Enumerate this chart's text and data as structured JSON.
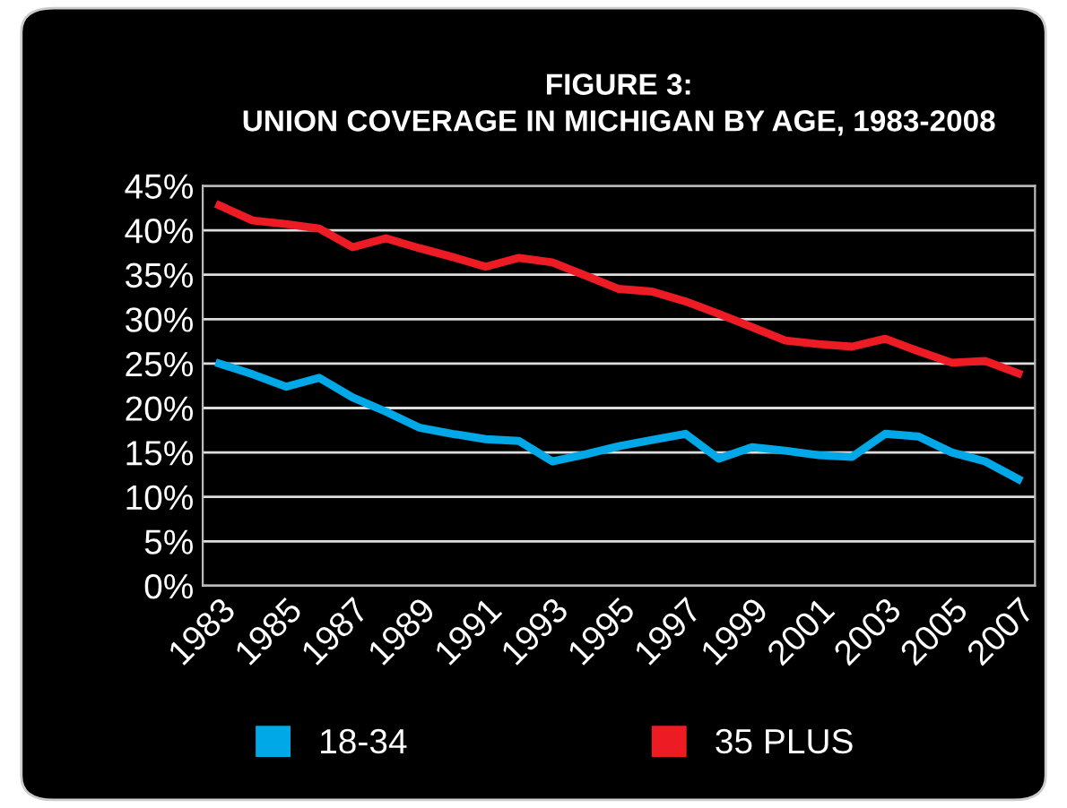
{
  "chart_data": {
    "type": "line",
    "title": "FIGURE 3:\nUNION COVERAGE IN MICHIGAN BY AGE, 1983-2008",
    "x": [
      1983,
      1984,
      1985,
      1986,
      1987,
      1988,
      1989,
      1990,
      1991,
      1992,
      1993,
      1994,
      1995,
      1996,
      1997,
      1998,
      1999,
      2000,
      2001,
      2002,
      2003,
      2004,
      2005,
      2006,
      2007
    ],
    "series": [
      {
        "name": "18-34",
        "color": "#00a8e8",
        "values": [
          25.0,
          23.8,
          22.4,
          23.4,
          21.2,
          19.6,
          17.8,
          17.1,
          16.5,
          16.3,
          14.0,
          14.8,
          15.7,
          16.4,
          17.1,
          14.3,
          15.6,
          15.2,
          14.7,
          14.5,
          17.1,
          16.8,
          15.0,
          14.0,
          12.0
        ]
      },
      {
        "name": "35 PLUS",
        "color": "#ed1c24",
        "values": [
          42.8,
          41.1,
          40.7,
          40.2,
          38.1,
          39.1,
          38.0,
          37.0,
          35.9,
          36.9,
          36.4,
          34.9,
          33.4,
          33.1,
          32.0,
          30.6,
          29.1,
          27.6,
          27.2,
          26.9,
          27.8,
          26.4,
          25.1,
          25.3,
          23.9
        ]
      }
    ],
    "xlim": [
      1982.5,
      2007.5
    ],
    "xticks": [
      1983,
      1985,
      1987,
      1989,
      1991,
      1993,
      1995,
      1997,
      1999,
      2001,
      2003,
      2005,
      2007
    ],
    "ylim": [
      0,
      45
    ],
    "yticks": [
      {
        "value": 0,
        "label": "0%"
      },
      {
        "value": 5,
        "label": "5%"
      },
      {
        "value": 10,
        "label": "10%"
      },
      {
        "value": 15,
        "label": "15%"
      },
      {
        "value": 20,
        "label": "20%"
      },
      {
        "value": 25,
        "label": "25%"
      },
      {
        "value": 30,
        "label": "30%"
      },
      {
        "value": 35,
        "label": "35%"
      },
      {
        "value": 40,
        "label": "40%"
      },
      {
        "value": 45,
        "label": "45%"
      }
    ],
    "grid": "y",
    "legend": "bottom",
    "marker": "none",
    "line_style": "solid"
  }
}
